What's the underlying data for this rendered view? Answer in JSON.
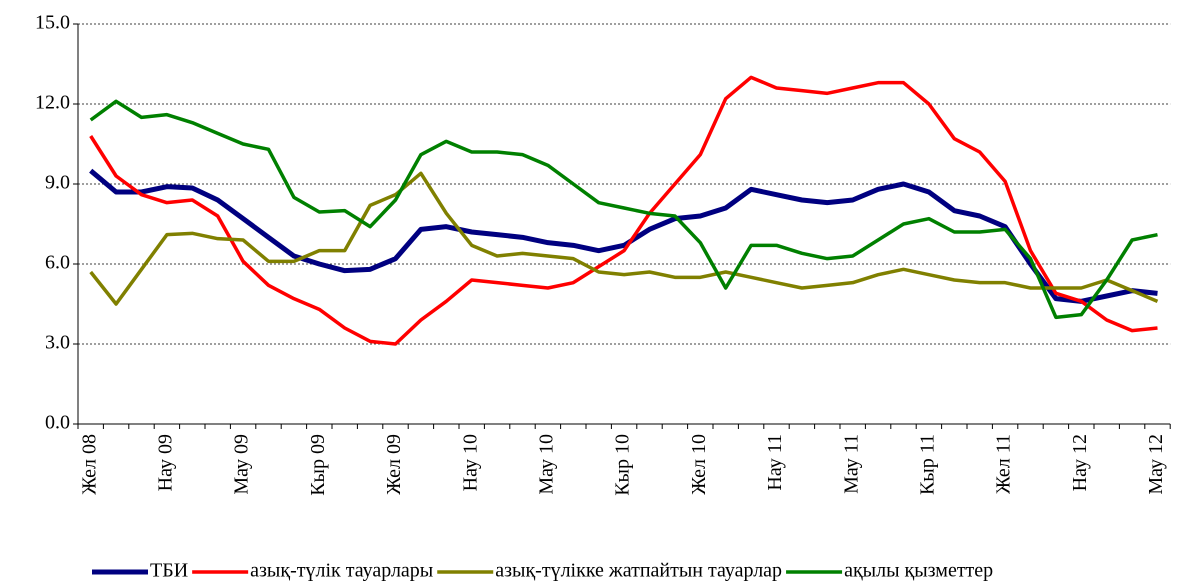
{
  "chart_data": {
    "type": "line",
    "categories": [
      "Жел 08",
      null,
      null,
      "Нау 09",
      null,
      null,
      "Мау 09",
      null,
      null,
      "Кыр 09",
      null,
      null,
      "Жел 09",
      null,
      null,
      "Нау 10",
      null,
      null,
      "Мау 10",
      null,
      null,
      "Кыр 10",
      null,
      null,
      "Жел 10",
      null,
      null,
      "Нау 11",
      null,
      null,
      "Мау 11",
      null,
      null,
      "Кыр 11",
      null,
      null,
      "Жел 11",
      null,
      null,
      "Нау 12",
      null,
      null,
      "Мау 12"
    ],
    "series": [
      {
        "name": "ТБИ",
        "color": "#000080",
        "values": [
          9.5,
          8.7,
          8.7,
          8.9,
          8.85,
          8.4,
          7.7,
          7.0,
          6.3,
          6.0,
          5.75,
          5.8,
          6.2,
          7.3,
          7.4,
          7.2,
          7.1,
          7.0,
          6.8,
          6.7,
          6.5,
          6.7,
          7.3,
          7.7,
          7.8,
          8.1,
          8.8,
          8.6,
          8.4,
          8.3,
          8.4,
          8.8,
          9.0,
          8.7,
          8.0,
          7.8,
          7.4,
          6.0,
          4.7,
          4.6,
          4.8,
          5.0,
          4.9
        ]
      },
      {
        "name": "азық-түлік тауарлары",
        "color": "#ff0000",
        "values": [
          10.8,
          9.3,
          8.6,
          8.3,
          8.4,
          7.8,
          6.1,
          5.2,
          4.7,
          4.3,
          3.6,
          3.1,
          3.0,
          3.9,
          4.6,
          5.4,
          5.3,
          5.2,
          5.1,
          5.3,
          5.9,
          6.5,
          7.9,
          9.0,
          10.1,
          12.2,
          13.0,
          12.6,
          12.5,
          12.4,
          12.6,
          12.8,
          12.8,
          12.0,
          10.7,
          10.2,
          9.1,
          6.5,
          4.9,
          4.6,
          3.9,
          3.5,
          3.6
        ]
      },
      {
        "name": "азық-түлікке жатпайтын тауарлар",
        "color": "#808000",
        "values": [
          5.7,
          4.5,
          5.8,
          7.1,
          7.15,
          6.95,
          6.9,
          6.1,
          6.1,
          6.5,
          6.5,
          8.2,
          8.6,
          9.4,
          7.9,
          6.7,
          6.3,
          6.4,
          6.3,
          6.2,
          5.7,
          5.6,
          5.7,
          5.5,
          5.5,
          5.7,
          5.5,
          5.3,
          5.1,
          5.2,
          5.3,
          5.6,
          5.8,
          5.6,
          5.4,
          5.3,
          5.3,
          5.1,
          5.1,
          5.1,
          5.4,
          5.0,
          4.6
        ]
      },
      {
        "name": "ақылы қызметтер",
        "color": "#008000",
        "values": [
          11.4,
          12.1,
          11.5,
          11.6,
          11.3,
          10.9,
          10.5,
          10.3,
          8.5,
          7.95,
          8.0,
          7.4,
          8.4,
          10.1,
          10.6,
          10.2,
          10.2,
          10.1,
          9.7,
          9.0,
          8.3,
          8.1,
          7.9,
          7.8,
          6.8,
          5.1,
          6.7,
          6.7,
          6.4,
          6.2,
          6.3,
          6.9,
          7.5,
          7.7,
          7.2,
          7.2,
          7.3,
          6.2,
          4.0,
          4.1,
          5.4,
          6.9,
          7.1
        ]
      }
    ],
    "ylim": [
      0,
      15
    ],
    "yticks": [
      {
        "value": 0,
        "label": "0.0"
      },
      {
        "value": 3,
        "label": "3.0"
      },
      {
        "value": 6,
        "label": "6.0"
      },
      {
        "value": 9,
        "label": "9.0"
      },
      {
        "value": 12,
        "label": "12.0"
      },
      {
        "value": 15,
        "label": "15.0"
      }
    ],
    "grid": true,
    "legend": "bottom"
  }
}
